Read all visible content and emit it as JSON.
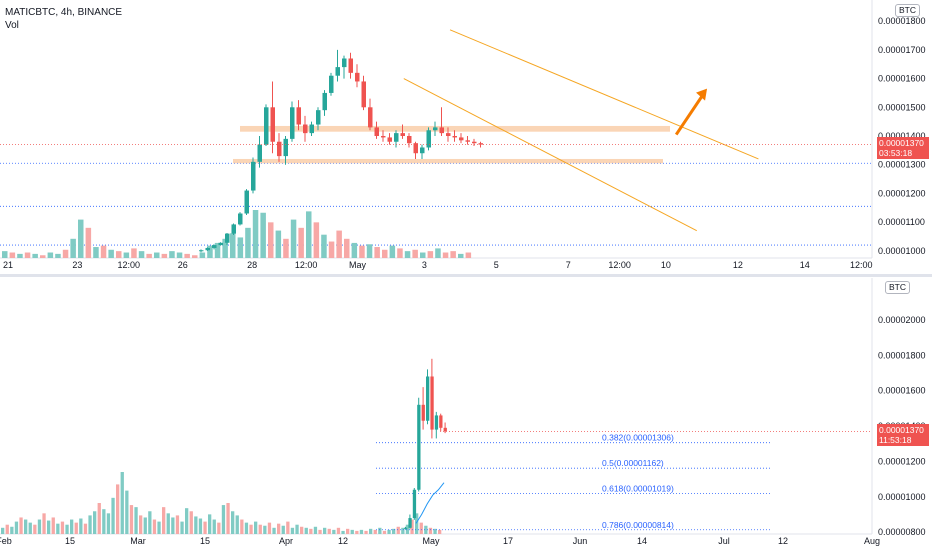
{
  "top": {
    "legend_title": "MATICBTC, 4h, BINANCE",
    "legend_vol": "Vol",
    "unit_badge": "BTC",
    "price_tag_value": "0.00001370",
    "price_tag_timer": "03:53:18"
  },
  "bottom": {
    "unit_badge": "BTC",
    "price_tag_value": "0.00001370",
    "price_tag_timer": "11:53:18"
  },
  "colors": {
    "up": "#26a69a",
    "down": "#ef5350",
    "up_vol": "#80cbc4",
    "down_vol": "#f7a8a6",
    "zone": "#f5b27a",
    "trend": "#f5a623",
    "arrow": "#f57c00",
    "fib": "#2962ff",
    "ma": "#2196f3"
  },
  "chart_data": [
    {
      "type": "candlestick",
      "title": "MATICBTC, 4h, BINANCE",
      "yaxis_labels": [
        "0.00001800",
        "0.00001700",
        "0.00001600",
        "0.00001500",
        "0.00001400",
        "0.00001300",
        "0.00001200",
        "0.00001100",
        "0.00001000"
      ],
      "ylim": [
        9.75e-06,
        1.825e-05
      ],
      "xaxis_labels": [
        "21",
        "23",
        "12:00",
        "26",
        "28",
        "12:00",
        "May",
        "3",
        "5",
        "7",
        "12:00",
        "10",
        "12",
        "14",
        "12:00"
      ],
      "current_price": 1.37e-05,
      "horizontal_zones": [
        {
          "y_low": 1.415e-05,
          "y_high": 1.435e-05,
          "x_start": "28",
          "x_end": "5"
        },
        {
          "y_low": 1.305e-05,
          "y_high": 1.32e-05,
          "x_start": "27",
          "x_end": "5"
        }
      ],
      "horizontal_lines": [
        1.305e-05,
        1.155e-05,
        1.02e-05
      ],
      "trendlines": [
        {
          "from": [
            8.6,
            1.77e-05
          ],
          "to": [
            14.6,
            1.32e-05
          ]
        },
        {
          "from": [
            7.7,
            1.6e-05
          ],
          "to": [
            13.4,
            1.07e-05
          ]
        }
      ],
      "arrow": {
        "from": [
          13.0,
          1.405e-05
        ],
        "to": [
          13.6,
          1.565e-05
        ]
      },
      "candles_ohlc": [
        [
          1e-05,
          1.005e-05,
          9.95e-06,
          1.002e-05
        ],
        [
          1.002e-05,
          1.012e-05,
          1e-05,
          1.01e-05
        ],
        [
          1.01e-05,
          1.022e-05,
          1.005e-05,
          1.02e-05
        ],
        [
          1.02e-05,
          1.03e-05,
          1.018e-05,
          1.028e-05
        ],
        [
          1.028e-05,
          1.062e-05,
          1.02e-05,
          1.06e-05
        ],
        [
          1.06e-05,
          1.095e-05,
          1.055e-05,
          1.092e-05
        ],
        [
          1.092e-05,
          1.135e-05,
          1.088e-05,
          1.13e-05
        ],
        [
          1.13e-05,
          1.215e-05,
          1.125e-05,
          1.21e-05
        ],
        [
          1.21e-05,
          1.325e-05,
          1.2e-05,
          1.31e-05
        ],
        [
          1.31e-05,
          1.4e-05,
          1.29e-05,
          1.37e-05
        ],
        [
          1.37e-05,
          1.51e-05,
          1.365e-05,
          1.5e-05
        ],
        [
          1.5e-05,
          1.59e-05,
          1.34e-05,
          1.38e-05
        ],
        [
          1.38e-05,
          1.41e-05,
          1.31e-05,
          1.33e-05
        ],
        [
          1.33e-05,
          1.4e-05,
          1.3e-05,
          1.39e-05
        ],
        [
          1.39e-05,
          1.52e-05,
          1.38e-05,
          1.5e-05
        ],
        [
          1.5e-05,
          1.525e-05,
          1.42e-05,
          1.44e-05
        ],
        [
          1.44e-05,
          1.47e-05,
          1.38e-05,
          1.41e-05
        ],
        [
          1.41e-05,
          1.45e-05,
          1.4e-05,
          1.44e-05
        ],
        [
          1.44e-05,
          1.5e-05,
          1.42e-05,
          1.49e-05
        ],
        [
          1.49e-05,
          1.56e-05,
          1.47e-05,
          1.55e-05
        ],
        [
          1.55e-05,
          1.62e-05,
          1.54e-05,
          1.61e-05
        ],
        [
          1.61e-05,
          1.7e-05,
          1.59e-05,
          1.64e-05
        ],
        [
          1.64e-05,
          1.68e-05,
          1.6e-05,
          1.67e-05
        ],
        [
          1.67e-05,
          1.69e-05,
          1.6e-05,
          1.62e-05
        ],
        [
          1.62e-05,
          1.65e-05,
          1.57e-05,
          1.59e-05
        ],
        [
          1.59e-05,
          1.61e-05,
          1.49e-05,
          1.5e-05
        ],
        [
          1.5e-05,
          1.53e-05,
          1.42e-05,
          1.43e-05
        ],
        [
          1.43e-05,
          1.45e-05,
          1.39e-05,
          1.4e-05
        ],
        [
          1.4e-05,
          1.42e-05,
          1.38e-05,
          1.395e-05
        ],
        [
          1.395e-05,
          1.41e-05,
          1.37e-05,
          1.38e-05
        ],
        [
          1.38e-05,
          1.42e-05,
          1.36e-05,
          1.41e-05
        ],
        [
          1.41e-05,
          1.44e-05,
          1.39e-05,
          1.4e-05
        ],
        [
          1.4e-05,
          1.41e-05,
          1.36e-05,
          1.375e-05
        ],
        [
          1.375e-05,
          1.38e-05,
          1.32e-05,
          1.34e-05
        ],
        [
          1.34e-05,
          1.37e-05,
          1.32e-05,
          1.36e-05
        ],
        [
          1.36e-05,
          1.43e-05,
          1.35e-05,
          1.42e-05
        ],
        [
          1.42e-05,
          1.45e-05,
          1.4e-05,
          1.43e-05
        ],
        [
          1.43e-05,
          1.5e-05,
          1.4e-05,
          1.41e-05
        ],
        [
          1.41e-05,
          1.43e-05,
          1.38e-05,
          1.4e-05
        ],
        [
          1.4e-05,
          1.42e-05,
          1.38e-05,
          1.395e-05
        ],
        [
          1.395e-05,
          1.41e-05,
          1.375e-05,
          1.385e-05
        ],
        [
          1.385e-05,
          1.4e-05,
          1.37e-05,
          1.38e-05
        ],
        [
          1.38e-05,
          1.39e-05,
          1.365e-05,
          1.375e-05
        ],
        [
          1.375e-05,
          1.38e-05,
          1.36e-05,
          1.37e-05
        ]
      ],
      "volume_bars": [
        {
          "v": 5,
          "up": true
        },
        {
          "v": 4,
          "up": false
        },
        {
          "v": 3,
          "up": true
        },
        {
          "v": 4,
          "up": false
        },
        {
          "v": 3,
          "up": true
        },
        {
          "v": 2,
          "up": false
        },
        {
          "v": 4,
          "up": true
        },
        {
          "v": 3,
          "up": true
        },
        {
          "v": 6,
          "up": false
        },
        {
          "v": 14,
          "up": true
        },
        {
          "v": 28,
          "up": true
        },
        {
          "v": 22,
          "up": false
        },
        {
          "v": 8,
          "up": true
        },
        {
          "v": 9,
          "up": false
        },
        {
          "v": 6,
          "up": true
        },
        {
          "v": 5,
          "up": false
        },
        {
          "v": 4,
          "up": true
        },
        {
          "v": 7,
          "up": false
        },
        {
          "v": 5,
          "up": true
        },
        {
          "v": 3,
          "up": false
        },
        {
          "v": 4,
          "up": true
        },
        {
          "v": 3,
          "up": false
        },
        {
          "v": 5,
          "up": true
        },
        {
          "v": 4,
          "up": true
        },
        {
          "v": 3,
          "up": false
        },
        {
          "v": 2,
          "up": false
        },
        {
          "v": 4,
          "up": true
        },
        {
          "v": 9,
          "up": true
        },
        {
          "v": 11,
          "up": true
        },
        {
          "v": 14,
          "up": true
        },
        {
          "v": 18,
          "up": true
        },
        {
          "v": 15,
          "up": true
        },
        {
          "v": 22,
          "up": true
        },
        {
          "v": 35,
          "up": true
        },
        {
          "v": 33,
          "up": true
        },
        {
          "v": 26,
          "up": false
        },
        {
          "v": 20,
          "up": true
        },
        {
          "v": 14,
          "up": false
        },
        {
          "v": 28,
          "up": true
        },
        {
          "v": 22,
          "up": false
        },
        {
          "v": 34,
          "up": true
        },
        {
          "v": 26,
          "up": false
        },
        {
          "v": 17,
          "up": true
        },
        {
          "v": 12,
          "up": false
        },
        {
          "v": 20,
          "up": false
        },
        {
          "v": 14,
          "up": false
        },
        {
          "v": 11,
          "up": true
        },
        {
          "v": 9,
          "up": false
        },
        {
          "v": 10,
          "up": true
        },
        {
          "v": 8,
          "up": false
        },
        {
          "v": 6,
          "up": false
        },
        {
          "v": 9,
          "up": true
        },
        {
          "v": 7,
          "up": false
        },
        {
          "v": 5,
          "up": true
        },
        {
          "v": 6,
          "up": false
        },
        {
          "v": 4,
          "up": true
        },
        {
          "v": 5,
          "up": false
        },
        {
          "v": 7,
          "up": true
        },
        {
          "v": 4,
          "up": false
        },
        {
          "v": 5,
          "up": false
        },
        {
          "v": 3,
          "up": true
        },
        {
          "v": 4,
          "up": false
        }
      ]
    },
    {
      "type": "candlestick",
      "yaxis_labels": [
        "0.00002000",
        "0.00001800",
        "0.00001600",
        "0.00001400",
        "0.00001200",
        "0.00001000",
        "0.00000800"
      ],
      "ylim": [
        7.9e-06,
        2.18e-05
      ],
      "xaxis_labels": [
        "Feb",
        "15",
        "Mar",
        "15",
        "Apr",
        "12",
        "May",
        "17",
        "Jun",
        "14",
        "Jul",
        "12",
        "Aug"
      ],
      "current_price": 1.37e-05,
      "fib_levels": [
        {
          "label": "0.382(0.00001306)",
          "value": 1.306e-05
        },
        {
          "label": "0.5(0.00001162)",
          "value": 1.162e-05
        },
        {
          "label": "0.618(0.00001019)",
          "value": 1.019e-05
        },
        {
          "label": "0.786(0.00000814)",
          "value": 8.14e-06
        }
      ],
      "candles_ohlc": [
        [
          8.2e-06,
          8.3e-06,
          8.15e-06,
          8.25e-06
        ],
        [
          8.25e-06,
          9e-06,
          8.2e-06,
          8.8e-06
        ],
        [
          8.8e-06,
          1.05e-05,
          8.7e-06,
          1.04e-05
        ],
        [
          1.04e-05,
          1.56e-05,
          1.03e-05,
          1.52e-05
        ],
        [
          1.52e-05,
          1.62e-05,
          1.38e-05,
          1.43e-05
        ],
        [
          1.43e-05,
          1.72e-05,
          1.41e-05,
          1.68e-05
        ],
        [
          1.68e-05,
          1.78e-05,
          1.33e-05,
          1.38e-05
        ],
        [
          1.38e-05,
          1.48e-05,
          1.33e-05,
          1.46e-05
        ],
        [
          1.46e-05,
          1.47e-05,
          1.37e-05,
          1.39e-05
        ],
        [
          1.39e-05,
          1.42e-05,
          1.36e-05,
          1.37e-05
        ]
      ],
      "moving_average": [
        [
          8.5e-06,
          0
        ],
        [
          9e-06,
          1
        ],
        [
          9.6e-06,
          2
        ],
        [
          1.01e-05,
          3
        ],
        [
          1.04e-05,
          4
        ],
        [
          1.08e-05,
          5
        ]
      ],
      "volume_bars": [
        {
          "v": 6,
          "up": true
        },
        {
          "v": 9,
          "up": false
        },
        {
          "v": 7,
          "up": true
        },
        {
          "v": 12,
          "up": true
        },
        {
          "v": 16,
          "up": false
        },
        {
          "v": 14,
          "up": true
        },
        {
          "v": 11,
          "up": true
        },
        {
          "v": 9,
          "up": false
        },
        {
          "v": 14,
          "up": true
        },
        {
          "v": 20,
          "up": false
        },
        {
          "v": 13,
          "up": true
        },
        {
          "v": 16,
          "up": false
        },
        {
          "v": 10,
          "up": true
        },
        {
          "v": 12,
          "up": false
        },
        {
          "v": 9,
          "up": true
        },
        {
          "v": 14,
          "up": true
        },
        {
          "v": 11,
          "up": false
        },
        {
          "v": 15,
          "up": true
        },
        {
          "v": 10,
          "up": false
        },
        {
          "v": 18,
          "up": true
        },
        {
          "v": 22,
          "up": true
        },
        {
          "v": 30,
          "up": false
        },
        {
          "v": 24,
          "up": true
        },
        {
          "v": 20,
          "up": true
        },
        {
          "v": 35,
          "up": true
        },
        {
          "v": 48,
          "up": false
        },
        {
          "v": 60,
          "up": true
        },
        {
          "v": 42,
          "up": true
        },
        {
          "v": 28,
          "up": false
        },
        {
          "v": 26,
          "up": true
        },
        {
          "v": 18,
          "up": false
        },
        {
          "v": 16,
          "up": true
        },
        {
          "v": 22,
          "up": true
        },
        {
          "v": 14,
          "up": false
        },
        {
          "v": 12,
          "up": true
        },
        {
          "v": 26,
          "up": false
        },
        {
          "v": 20,
          "up": true
        },
        {
          "v": 16,
          "up": true
        },
        {
          "v": 18,
          "up": false
        },
        {
          "v": 12,
          "up": true
        },
        {
          "v": 25,
          "up": true
        },
        {
          "v": 22,
          "up": false
        },
        {
          "v": 17,
          "up": true
        },
        {
          "v": 15,
          "up": true
        },
        {
          "v": 12,
          "up": false
        },
        {
          "v": 19,
          "up": true
        },
        {
          "v": 14,
          "up": true
        },
        {
          "v": 11,
          "up": false
        },
        {
          "v": 28,
          "up": true
        },
        {
          "v": 30,
          "up": false
        },
        {
          "v": 22,
          "up": true
        },
        {
          "v": 18,
          "up": true
        },
        {
          "v": 14,
          "up": false
        },
        {
          "v": 11,
          "up": true
        },
        {
          "v": 9,
          "up": false
        },
        {
          "v": 12,
          "up": true
        },
        {
          "v": 9,
          "up": false
        },
        {
          "v": 8,
          "up": true
        },
        {
          "v": 11,
          "up": false
        },
        {
          "v": 6,
          "up": true
        },
        {
          "v": 10,
          "up": false
        },
        {
          "v": 8,
          "up": true
        },
        {
          "v": 12,
          "up": false
        },
        {
          "v": 6,
          "up": true
        },
        {
          "v": 9,
          "up": true
        },
        {
          "v": 7,
          "up": false
        },
        {
          "v": 6,
          "up": true
        },
        {
          "v": 5,
          "up": false
        },
        {
          "v": 7,
          "up": true
        },
        {
          "v": 4,
          "up": false
        },
        {
          "v": 6,
          "up": true
        },
        {
          "v": 5,
          "up": false
        },
        {
          "v": 4,
          "up": true
        },
        {
          "v": 6,
          "up": false
        },
        {
          "v": 3,
          "up": true
        },
        {
          "v": 5,
          "up": false
        },
        {
          "v": 4,
          "up": true
        },
        {
          "v": 3,
          "up": false
        },
        {
          "v": 4,
          "up": true
        },
        {
          "v": 3,
          "up": false
        },
        {
          "v": 5,
          "up": true
        },
        {
          "v": 4,
          "up": false
        },
        {
          "v": 6,
          "up": true
        },
        {
          "v": 3,
          "up": false
        },
        {
          "v": 4,
          "up": true
        },
        {
          "v": 5,
          "up": true
        },
        {
          "v": 7,
          "up": false
        },
        {
          "v": 6,
          "up": true
        },
        {
          "v": 9,
          "up": true
        },
        {
          "v": 14,
          "up": false
        },
        {
          "v": 20,
          "up": true
        },
        {
          "v": 11,
          "up": false
        },
        {
          "v": 8,
          "up": true
        },
        {
          "v": 6,
          "up": false
        },
        {
          "v": 5,
          "up": true
        },
        {
          "v": 4,
          "up": false
        }
      ]
    }
  ]
}
